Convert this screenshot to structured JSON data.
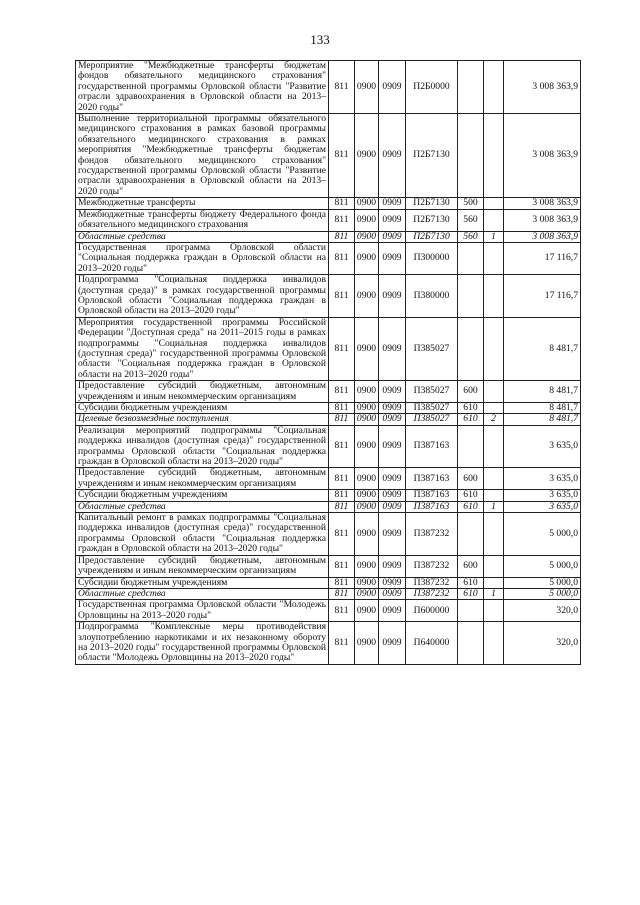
{
  "page_number": "133",
  "rows": [
    {
      "name": "Мероприятие \"Межбюджетные трансферты бюджетам фондов обязательного медицинского страхования\" государственной программы Орловской области \"Развитие отрасли здравоохранения в Орловской области на 2013–2020 годы\"",
      "grbs": "811",
      "rz": "0900",
      "pr": "0909",
      "csr": "П2Б0000",
      "vr": "",
      "src": "",
      "sum": "3 008 363,9"
    },
    {
      "name": "Выполнение территориальной программы обязательного медицинского страхования в рамках базовой программы обязательного медицинского страхования в рамках мероприятия \"Межбюджетные трансферты бюджетам фондов обязательного медицинского страхования\" государственной программы Орловской области \"Развитие отрасли здравоохранения в Орловской области на 2013–2020 годы\"",
      "grbs": "811",
      "rz": "0900",
      "pr": "0909",
      "csr": "П2Б7130",
      "vr": "",
      "src": "",
      "sum": "3 008 363,9"
    },
    {
      "name": "Межбюджетные трансферты",
      "grbs": "811",
      "rz": "0900",
      "pr": "0909",
      "csr": "П2Б7130",
      "vr": "500",
      "src": "",
      "sum": "3 008 363,9"
    },
    {
      "name": "Межбюджетные трансферты бюджету Федерального фонда обязательного медицинского страхования",
      "grbs": "811",
      "rz": "0900",
      "pr": "0909",
      "csr": "П2Б7130",
      "vr": "560",
      "src": "",
      "sum": "3 008 363,9"
    },
    {
      "name": "Областные средства",
      "grbs": "811",
      "rz": "0900",
      "pr": "0909",
      "csr": "П2Б7130",
      "vr": "560",
      "src": "1",
      "sum": "3 008 363,9",
      "italic": true
    },
    {
      "name": "Государственная программа Орловской области \"Социальная поддержка граждан в Орловской области на 2013–2020 годы\"",
      "grbs": "811",
      "rz": "0900",
      "pr": "0909",
      "csr": "П300000",
      "vr": "",
      "src": "",
      "sum": "17 116,7"
    },
    {
      "name": "Подпрограмма \"Социальная поддержка инвалидов (доступная среда)\" в рамках государственной программы Орловской области \"Социальная поддержка граждан в Орловской области на 2013–2020 годы\"",
      "grbs": "811",
      "rz": "0900",
      "pr": "0909",
      "csr": "П380000",
      "vr": "",
      "src": "",
      "sum": "17 116,7"
    },
    {
      "name": "Мероприятия государственной программы Российской Федерации \"Доступная среда\" на 2011–2015 годы в рамках подпрограммы \"Социальная поддержка инвалидов (доступная среда)\" государственной программы Орловской области \"Социальная поддержка граждан в Орловской области на 2013–2020 годы\"",
      "grbs": "811",
      "rz": "0900",
      "pr": "0909",
      "csr": "П385027",
      "vr": "",
      "src": "",
      "sum": "8 481,7"
    },
    {
      "name": "Предоставление субсидий бюджетным, автономным учреждениям и иным некоммерческим организациям",
      "grbs": "811",
      "rz": "0900",
      "pr": "0909",
      "csr": "П385027",
      "vr": "600",
      "src": "",
      "sum": "8 481,7"
    },
    {
      "name": "Субсидии бюджетным учреждениям",
      "grbs": "811",
      "rz": "0900",
      "pr": "0909",
      "csr": "П385027",
      "vr": "610",
      "src": "",
      "sum": "8 481,7"
    },
    {
      "name": "Целевые безвозмездные поступления",
      "grbs": "811",
      "rz": "0900",
      "pr": "0909",
      "csr": "П385027",
      "vr": "610",
      "src": "2",
      "sum": "8 481,7",
      "italic": true
    },
    {
      "name": "Реализация мероприятий подпрограммы \"Социальная поддержка инвалидов (доступная среда)\" государственной программы Орловской области \"Социальная поддержка граждан в Орловской области на 2013–2020 годы\"",
      "grbs": "811",
      "rz": "0900",
      "pr": "0909",
      "csr": "П387163",
      "vr": "",
      "src": "",
      "sum": "3 635,0"
    },
    {
      "name": "Предоставление субсидий бюджетным, автономным учреждениям и иным некоммерческим организациям",
      "grbs": "811",
      "rz": "0900",
      "pr": "0909",
      "csr": "П387163",
      "vr": "600",
      "src": "",
      "sum": "3 635,0"
    },
    {
      "name": "Субсидии бюджетным учреждениям",
      "grbs": "811",
      "rz": "0900",
      "pr": "0909",
      "csr": "П387163",
      "vr": "610",
      "src": "",
      "sum": "3 635,0"
    },
    {
      "name": "Областные средства",
      "grbs": "811",
      "rz": "0900",
      "pr": "0909",
      "csr": "П387163",
      "vr": "610",
      "src": "1",
      "sum": "3 635,0",
      "italic": true
    },
    {
      "name": "Капитальный ремонт в рамках подпрограммы \"Социальная поддержка инвалидов (доступная среда)\" государственной программы Орловской области \"Социальная поддержка граждан в Орловской области на 2013–2020 годы\"",
      "grbs": "811",
      "rz": "0900",
      "pr": "0909",
      "csr": "П387232",
      "vr": "",
      "src": "",
      "sum": "5 000,0"
    },
    {
      "name": "Предоставление субсидий бюджетным, автономным учреждениям и иным некоммерческим организациям",
      "grbs": "811",
      "rz": "0900",
      "pr": "0909",
      "csr": "П387232",
      "vr": "600",
      "src": "",
      "sum": "5 000,0"
    },
    {
      "name": "Субсидии бюджетным учреждениям",
      "grbs": "811",
      "rz": "0900",
      "pr": "0909",
      "csr": "П387232",
      "vr": "610",
      "src": "",
      "sum": "5 000,0"
    },
    {
      "name": "Областные средства",
      "grbs": "811",
      "rz": "0900",
      "pr": "0909",
      "csr": "П387232",
      "vr": "610",
      "src": "1",
      "sum": "5 000,0",
      "italic": true
    },
    {
      "name": "Государственная программа Орловской области \"Молодежь Орловщины на 2013–2020 годы\"",
      "grbs": "811",
      "rz": "0900",
      "pr": "0909",
      "csr": "П600000",
      "vr": "",
      "src": "",
      "sum": "320,0"
    },
    {
      "name": "Подпрограмма \"Комплексные меры противодействия злоупотреблению наркотиками и их незаконному обороту на 2013–2020 годы\" государственной программы Орловской области \"Молодежь Орловщины на 2013–2020 годы\"",
      "grbs": "811",
      "rz": "0900",
      "pr": "0909",
      "csr": "П640000",
      "vr": "",
      "src": "",
      "sum": "320,0"
    }
  ]
}
